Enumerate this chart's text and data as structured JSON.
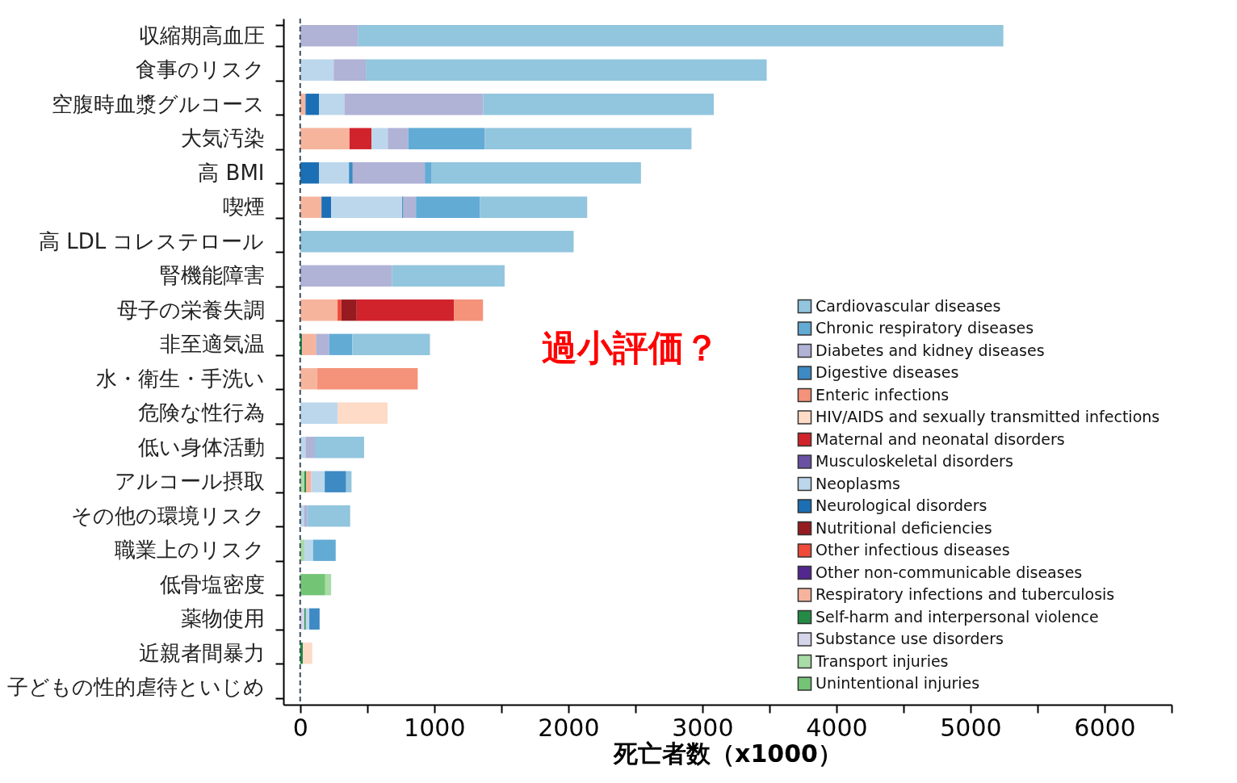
{
  "chart_data": {
    "type": "bar",
    "orientation": "horizontal",
    "stacked": true,
    "xlabel": "死亡者数（x1000）",
    "categories": [
      "収縮期高血圧",
      "食事のリスク",
      "空腹時血漿グルコース",
      "大気汚染",
      "高 BMI",
      "喫煙",
      "高 LDL コレステロール",
      "腎機能障害",
      "母子の栄養失調",
      "非至適気温",
      "水・衛生・手洗い",
      "危険な性行為",
      "低い身体活動",
      "アルコール摂取",
      "その他の環境リスク",
      "職業上のリスク",
      "低骨塩密度",
      "薬物使用",
      "近親者間暴力",
      "子どもの性的虐待といじめ"
    ],
    "series": [
      {
        "name": "Substance use disorders",
        "color": "#d4d4ea",
        "values": [
          null,
          null,
          null,
          null,
          null,
          null,
          null,
          null,
          null,
          null,
          null,
          null,
          null,
          null,
          null,
          null,
          null,
          32,
          null,
          null
        ]
      },
      {
        "name": "Unintentional injuries",
        "color": "#74c476",
        "values": [
          null,
          null,
          null,
          null,
          null,
          null,
          null,
          null,
          null,
          null,
          null,
          null,
          null,
          null,
          null,
          null,
          187,
          null,
          null,
          null
        ]
      },
      {
        "name": "Transport injuries",
        "color": "#a8dba6",
        "values": [
          null,
          null,
          null,
          null,
          null,
          null,
          null,
          null,
          null,
          null,
          null,
          null,
          null,
          32,
          null,
          32,
          44,
          null,
          null,
          null
        ]
      },
      {
        "name": "Self-harm and interpersonal violence",
        "color": "#238b45",
        "values": [
          null,
          null,
          null,
          null,
          null,
          null,
          null,
          null,
          null,
          15,
          null,
          null,
          null,
          12,
          null,
          null,
          null,
          10,
          20,
          null
        ]
      },
      {
        "name": "Respiratory infections and tuberculosis",
        "color": "#f7b49d",
        "values": [
          null,
          null,
          40,
          368,
          null,
          159,
          null,
          null,
          279,
          103,
          127,
          null,
          null,
          39,
          null,
          null,
          null,
          null,
          null,
          null
        ]
      },
      {
        "name": "Other infectious diseases",
        "color": "#ef4b38",
        "values": [
          null,
          null,
          null,
          null,
          null,
          null,
          null,
          null,
          29,
          null,
          null,
          null,
          null,
          null,
          null,
          null,
          null,
          null,
          null,
          null
        ]
      },
      {
        "name": "Nutritional deficiencies",
        "color": "#961b20",
        "values": [
          null,
          null,
          null,
          null,
          null,
          null,
          null,
          null,
          114,
          null,
          null,
          null,
          null,
          null,
          null,
          null,
          null,
          null,
          null,
          null
        ]
      },
      {
        "name": "Maternal and neonatal disorders",
        "color": "#d1232b",
        "values": [
          null,
          null,
          null,
          164,
          null,
          null,
          null,
          null,
          724,
          null,
          null,
          null,
          null,
          null,
          null,
          null,
          null,
          null,
          null,
          null
        ]
      },
      {
        "name": "Neurological disorders",
        "color": "#1b6fb4",
        "values": [
          null,
          null,
          100,
          null,
          140,
          72,
          null,
          null,
          null,
          null,
          null,
          null,
          null,
          null,
          null,
          null,
          null,
          null,
          null,
          null
        ]
      },
      {
        "name": "Neoplasms",
        "color": "#bcd7ec",
        "values": [
          null,
          250,
          190,
          122,
          224,
          530,
          null,
          null,
          null,
          null,
          null,
          279,
          40,
          100,
          28,
          64,
          null,
          26,
          null,
          null
        ]
      },
      {
        "name": "Digestive diseases",
        "color": "#3d8ac4",
        "values": [
          null,
          null,
          null,
          null,
          28,
          9,
          null,
          null,
          null,
          null,
          null,
          null,
          null,
          160,
          null,
          null,
          null,
          77,
          null,
          null
        ]
      },
      {
        "name": "Musculoskeletal disorders",
        "color": "#6a51a3",
        "values": [
          null,
          null,
          null,
          null,
          null,
          null,
          null,
          null,
          null,
          null,
          null,
          null,
          null,
          null,
          null,
          null,
          null,
          null,
          null,
          null
        ]
      },
      {
        "name": "Other non-communicable diseases",
        "color": "#54278f",
        "values": [
          null,
          null,
          null,
          null,
          null,
          null,
          null,
          null,
          null,
          null,
          null,
          null,
          null,
          null,
          null,
          null,
          null,
          null,
          null,
          null
        ]
      },
      {
        "name": "Diabetes and kidney diseases",
        "color": "#b0b2d6",
        "values": [
          430,
          240,
          1035,
          152,
          538,
          94,
          null,
          684,
          null,
          99,
          null,
          null,
          70,
          null,
          24,
          null,
          null,
          null,
          null,
          null
        ]
      },
      {
        "name": "Chronic respiratory diseases",
        "color": "#62abd5",
        "values": [
          null,
          null,
          null,
          570,
          47,
          476,
          null,
          null,
          null,
          172,
          null,
          null,
          null,
          null,
          null,
          169,
          null,
          null,
          null,
          null
        ]
      },
      {
        "name": "Cardiovascular diseases",
        "color": "#92c5de",
        "values": [
          4815,
          2990,
          1720,
          1543,
          1565,
          801,
          2040,
          841,
          null,
          579,
          null,
          null,
          367,
          40,
          321,
          null,
          null,
          null,
          null,
          null
        ]
      },
      {
        "name": "Enteric infections",
        "color": "#f4937a",
        "values": [
          null,
          null,
          null,
          null,
          null,
          null,
          null,
          null,
          218,
          null,
          750,
          null,
          null,
          null,
          null,
          null,
          null,
          null,
          null,
          null
        ]
      },
      {
        "name": "HIV/AIDS and sexually transmitted infections",
        "color": "#fddbc7",
        "values": [
          null,
          null,
          null,
          null,
          null,
          null,
          null,
          null,
          null,
          null,
          null,
          373,
          null,
          null,
          null,
          null,
          null,
          null,
          70,
          null
        ]
      }
    ],
    "xlim": [
      -125,
      6500
    ],
    "xticks": [
      0,
      {
        "value": 500,
        "label": null
      },
      1000,
      {
        "value": 1500,
        "label": null
      },
      2000,
      {
        "value": 2500,
        "label": null
      },
      3000,
      {
        "value": 3500,
        "label": null
      },
      4000,
      {
        "value": 4500,
        "label": null
      },
      5000,
      {
        "value": 5500,
        "label": null
      },
      6000,
      {
        "value": 6500,
        "label": null
      }
    ],
    "ref_lines": [
      {
        "axis": "x",
        "value": 0,
        "label": null,
        "color": "#3b4d5c",
        "line_style": "dashed"
      }
    ],
    "annotations": [
      "過小評価？"
    ],
    "legend": "bottom right",
    "grid": false
  }
}
